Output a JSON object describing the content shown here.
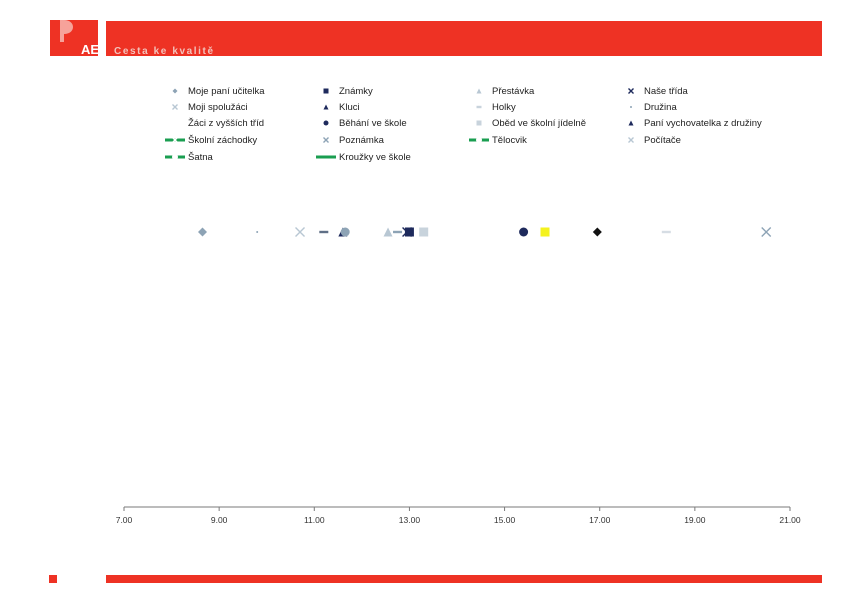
{
  "colors": {
    "brand": "#ee3224",
    "logo_light": "#f6a29a",
    "green": "#1a9e50",
    "navy": "#1e2a5c",
    "steel": "#8da3b5",
    "yellow": "#f4f21e"
  },
  "header": {
    "logo_text": "AE",
    "tagline": "Cesta ke kvalitě"
  },
  "chart_data": {
    "type": "scatter",
    "x_ticks": [
      "7.00",
      "9.00",
      "11.00",
      "13.00",
      "15.00",
      "17.00",
      "19.00",
      "21.00"
    ],
    "xlim": [
      7,
      21
    ],
    "legend_placement": "top",
    "grid": false,
    "legend": [
      {
        "name": "Moje paní učitelka",
        "marker": "diamond",
        "color": "#8da3b5"
      },
      {
        "name": "Známky",
        "marker": "square",
        "color": "#1e2a5c"
      },
      {
        "name": "Přestávka",
        "marker": "triangle",
        "color": "#b8c7d3"
      },
      {
        "name": "Naše třída",
        "marker": "x",
        "color": "#1e2a5c"
      },
      {
        "name": "Moji spolužáci",
        "marker": "x",
        "color": "#b8c7d3"
      },
      {
        "name": "Kluci",
        "marker": "triangle",
        "color": "#1e2a5c"
      },
      {
        "name": "Holky",
        "marker": "dash",
        "color": "#c8d3dc"
      },
      {
        "name": "Družina",
        "marker": "dot",
        "color": "#8da3b5"
      },
      {
        "name": "Žáci z vyšších tříd",
        "marker": "none",
        "color": "#ffffff"
      },
      {
        "name": "Běhání ve škole",
        "marker": "circle",
        "color": "#1e2a5c"
      },
      {
        "name": "Oběd ve školní jídelně",
        "marker": "square",
        "color": "#c8d3dc"
      },
      {
        "name": "Paní vychovatelka z družiny",
        "marker": "triangle",
        "color": "#1e2a5c"
      },
      {
        "name": "Školní záchodky",
        "marker": "x",
        "color": "#1a9e50",
        "line": true
      },
      {
        "name": "Poznámka",
        "marker": "x",
        "color": "#8da3b5"
      },
      {
        "name": "Tělocvik",
        "marker": "circle",
        "color": "#1a9e50",
        "line": true
      },
      {
        "name": "Počítače",
        "marker": "x",
        "color": "#b8c7d3"
      },
      {
        "name": "Šatna",
        "marker": "circle",
        "color": "#1a9e50",
        "line": true
      },
      {
        "name": "Kroužky ve škole",
        "marker": "none",
        "color": "#1a9e50",
        "line": true
      }
    ],
    "points": [
      {
        "x": 8.65,
        "marker": "diamond",
        "color": "#8da3b5"
      },
      {
        "x": 9.8,
        "marker": "dot",
        "color": "#8da3b5"
      },
      {
        "x": 10.7,
        "marker": "x",
        "color": "#b8c7d3"
      },
      {
        "x": 11.2,
        "marker": "dash",
        "color": "#5f6f86"
      },
      {
        "x": 11.6,
        "marker": "triangle",
        "color": "#1e2a5c"
      },
      {
        "x": 11.65,
        "marker": "circle",
        "color": "#8da3b5"
      },
      {
        "x": 12.55,
        "marker": "triangle",
        "color": "#b8c7d3"
      },
      {
        "x": 12.75,
        "marker": "dash",
        "color": "#8da3b5"
      },
      {
        "x": 12.95,
        "marker": "x",
        "color": "#1e2a5c"
      },
      {
        "x": 13.0,
        "marker": "square",
        "color": "#1e2a5c"
      },
      {
        "x": 13.3,
        "marker": "square",
        "color": "#c8d3dc"
      },
      {
        "x": 15.4,
        "marker": "circle",
        "color": "#1e2a5c"
      },
      {
        "x": 15.85,
        "marker": "square",
        "color": "#f4f21e"
      },
      {
        "x": 16.95,
        "marker": "diamond",
        "color": "#111111"
      },
      {
        "x": 18.4,
        "marker": "dash",
        "color": "#d6dde4"
      },
      {
        "x": 20.5,
        "marker": "x",
        "color": "#8da3b5"
      }
    ]
  }
}
